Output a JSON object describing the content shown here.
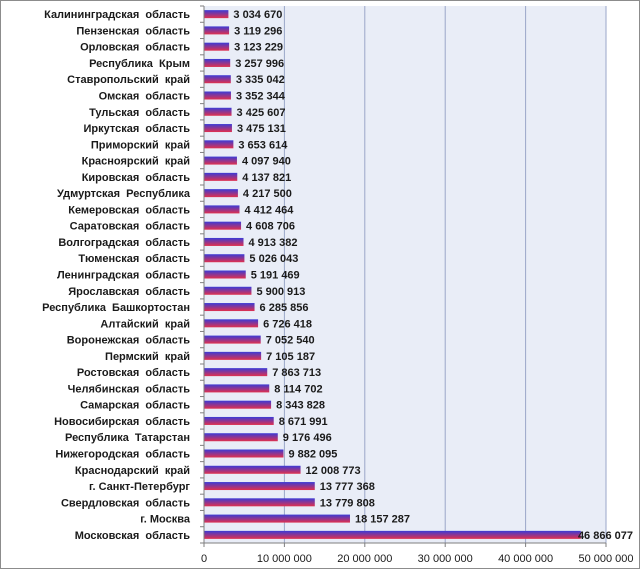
{
  "chart_data": {
    "type": "bar",
    "orientation": "horizontal",
    "title": "",
    "xlabel": "",
    "ylabel": "",
    "xlim": [
      0,
      50000000
    ],
    "grid": true,
    "legend": "none",
    "colors": {
      "bar_top": "#3b3bd6",
      "bar_bottom": "#e0304e",
      "plot_bg": "#e9edf7",
      "grid": "#9aa6c8",
      "axis": "#7f7f7f"
    },
    "ticks": [
      "0",
      "10 000 000",
      "20 000 000",
      "30 000 000",
      "40 000 000",
      "50 000 000"
    ],
    "tick_values": [
      0,
      10000000,
      20000000,
      30000000,
      40000000,
      50000000
    ],
    "categories": [
      "Калининградская  область",
      "Пензенская  область",
      "Орловская  область",
      "Республика  Крым",
      "Ставропольский  край",
      "Омская  область",
      "Тульская  область",
      "Иркутская  область",
      "Приморский  край",
      "Красноярский  край",
      "Кировская  область",
      "Удмуртская  Республика",
      "Кемеровская  область",
      "Саратовская  область",
      "Волгоградская  область",
      "Тюменская  область",
      "Ленинградская  область",
      "Ярославская  область",
      "Республика  Башкортостан",
      "Алтайский  край",
      "Воронежская  область",
      "Пермский  край",
      "Ростовская  область",
      "Челябинская  область",
      "Самарская  область",
      "Новосибирская  область",
      "Республика  Татарстан",
      "Нижегородская  область",
      "Краснодарский  край",
      "г. Санкт-Петербург",
      "Свердловская  область",
      "г. Москва",
      "Московская  область"
    ],
    "values": [
      3034670,
      3119296,
      3123229,
      3257996,
      3335042,
      3352344,
      3425607,
      3475131,
      3653614,
      4097940,
      4137821,
      4217500,
      4412464,
      4608706,
      4913382,
      5026043,
      5191469,
      5900913,
      6285856,
      6726418,
      7052540,
      7105187,
      7863713,
      8114702,
      8343828,
      8671991,
      9176496,
      9882095,
      12008773,
      13777368,
      13779808,
      18157287,
      46866077
    ],
    "value_labels": [
      "3 034 670",
      "3 119 296",
      "3 123 229",
      "3 257 996",
      "3 335 042",
      "3 352 344",
      "3 425 607",
      "3 475 131",
      "3 653 614",
      "4 097 940",
      "4 137 821",
      "4 217 500",
      "4 412 464",
      "4 608 706",
      "4 913 382",
      "5 026 043",
      "5 191 469",
      "5 900 913",
      "6 285 856",
      "6 726 418",
      "7 052 540",
      "7 105 187",
      "7 863 713",
      "8 114 702",
      "8 343 828",
      "8 671 991",
      "9 176 496",
      "9 882 095",
      "12 008 773",
      "13 777 368",
      "13 779 808",
      "18 157 287",
      "46 866 077"
    ]
  }
}
